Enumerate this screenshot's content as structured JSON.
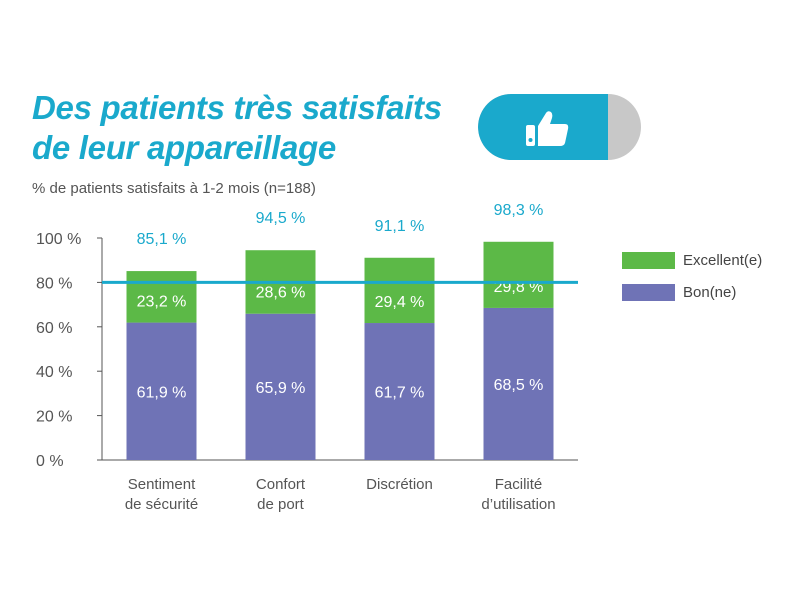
{
  "page": {
    "title": "Des patients très satisfaits\nde leur appareillage",
    "subtitle": "% de patients satisfaits à 1-2 mois (n=188)",
    "badge_icon": "thumbs-up-icon"
  },
  "colors": {
    "accent": "#1aa9cc",
    "excellent": "#5cb947",
    "bon": "#6f73b6",
    "pill_gray": "#c8c8c8"
  },
  "chart_data": {
    "type": "bar",
    "stacked": true,
    "categories": [
      [
        "Sentiment",
        "de sécurité"
      ],
      [
        "Confort",
        "de port"
      ],
      [
        "Discrétion"
      ],
      [
        "Facilité",
        "d’utilisation"
      ]
    ],
    "series": [
      {
        "name": "Bon(ne)",
        "values": [
          61.9,
          65.9,
          61.7,
          68.5
        ],
        "labels": [
          "61,9 %",
          "65,9 %",
          "61,7 %",
          "68,5 %"
        ],
        "color": "#6f73b6"
      },
      {
        "name": "Excellent(e)",
        "values": [
          23.2,
          28.6,
          29.4,
          29.8
        ],
        "labels": [
          "23,2 %",
          "28,6 %",
          "29,4 %",
          "29,8 %"
        ],
        "color": "#5cb947"
      }
    ],
    "totals": [
      "85,1 %",
      "94,5 %",
      "91,1 %",
      "98,3 %"
    ],
    "total_values": [
      85.1,
      94.5,
      91.1,
      98.3
    ],
    "y_ticks": [
      0,
      20,
      40,
      60,
      80,
      100
    ],
    "y_tick_labels": [
      "0 %",
      "20 %",
      "40 %",
      "60 %",
      "80 %",
      "100 %"
    ],
    "ylim": [
      0,
      100
    ],
    "reference_line": 80,
    "legend": [
      {
        "label": "Excellent(e)",
        "color": "#5cb947"
      },
      {
        "label": "Bon(ne)",
        "color": "#6f73b6"
      }
    ],
    "legend_position": "right"
  }
}
